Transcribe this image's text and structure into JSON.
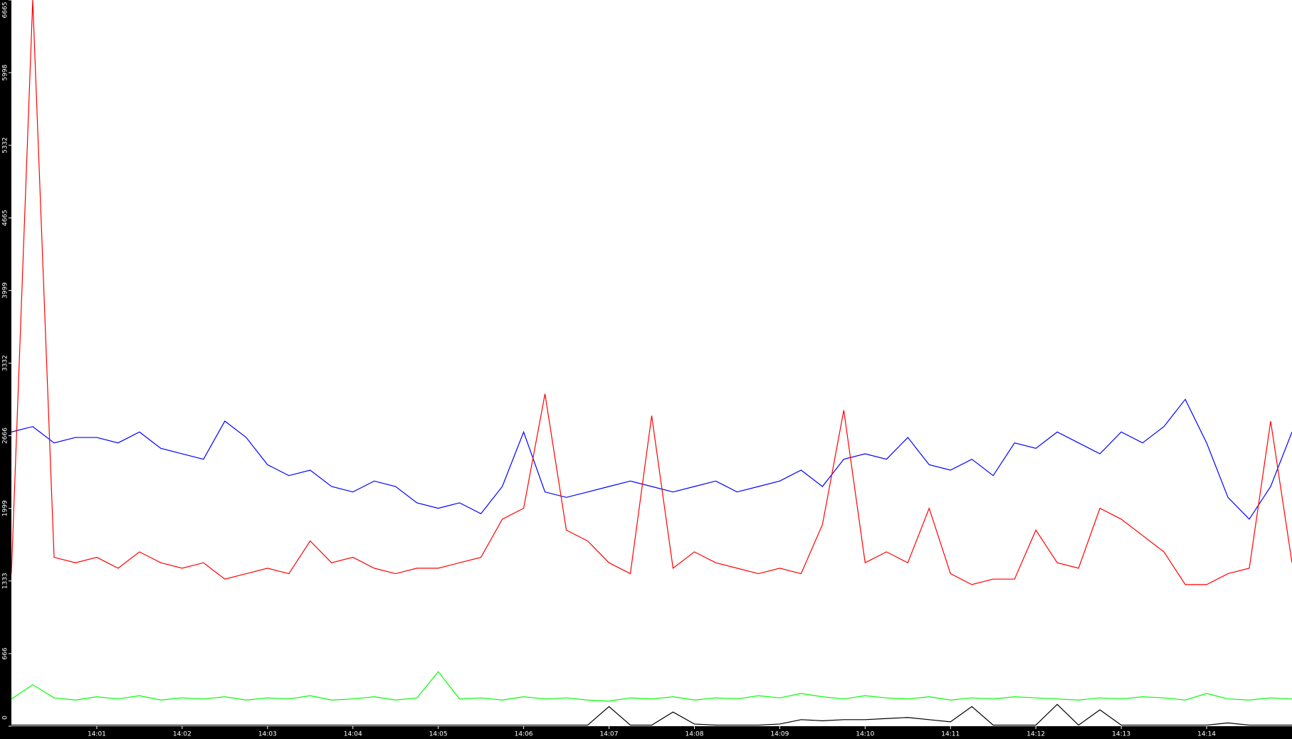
{
  "chart_data": {
    "type": "line",
    "xlim": [
      0,
      15
    ],
    "xticks": [
      {
        "value": 1,
        "label": "14:01"
      },
      {
        "value": 2,
        "label": "14:02"
      },
      {
        "value": 3,
        "label": "14:03"
      },
      {
        "value": 4,
        "label": "14:04"
      },
      {
        "value": 5,
        "label": "14:05"
      },
      {
        "value": 6,
        "label": "14:06"
      },
      {
        "value": 7,
        "label": "14:07"
      },
      {
        "value": 8,
        "label": "14:08"
      },
      {
        "value": 9,
        "label": "14:09"
      },
      {
        "value": 10,
        "label": "14:10"
      },
      {
        "value": 11,
        "label": "14:11"
      },
      {
        "value": 12,
        "label": "14:12"
      },
      {
        "value": 13,
        "label": "14:13"
      },
      {
        "value": 14,
        "label": "14:14"
      }
    ],
    "ylim": [
      0,
      6665
    ],
    "yticks": [
      0,
      666,
      1333,
      1999,
      2666,
      3332,
      3999,
      4665,
      5332,
      5998,
      6665
    ],
    "grid": false,
    "series": [
      {
        "color": "#0000ff",
        "values": [
          2700,
          2750,
          2600,
          2650,
          2650,
          2600,
          2700,
          2550,
          2500,
          2450,
          2800,
          2650,
          2400,
          2300,
          2350,
          2200,
          2150,
          2250,
          2200,
          2050,
          2000,
          2050,
          1950,
          2200,
          2700,
          2150,
          2100,
          2150,
          2200,
          2250,
          2200,
          2150,
          2200,
          2250,
          2150,
          2200,
          2250,
          2350,
          2200,
          2450,
          2500,
          2450,
          2650,
          2400,
          2350,
          2450,
          2300,
          2600,
          2550,
          2700,
          2600,
          2500,
          2700,
          2600,
          2750,
          3000,
          2600,
          2100,
          1900,
          2200,
          2700
        ]
      },
      {
        "color": "#ff0000",
        "values": [
          1400,
          6665,
          1550,
          1500,
          1550,
          1450,
          1600,
          1500,
          1450,
          1500,
          1350,
          1400,
          1450,
          1400,
          1700,
          1500,
          1550,
          1450,
          1400,
          1450,
          1450,
          1500,
          1550,
          1900,
          2000,
          3050,
          1800,
          1700,
          1500,
          1400,
          2850,
          1450,
          1600,
          1500,
          1450,
          1400,
          1450,
          1400,
          1850,
          2900,
          1500,
          1600,
          1500,
          2000,
          1400,
          1300,
          1350,
          1350,
          1800,
          1500,
          1450,
          2000,
          1900,
          1750,
          1600,
          1300,
          1300,
          1400,
          1450,
          2800,
          1500
        ]
      },
      {
        "color": "#00ff00",
        "values": [
          250,
          380,
          260,
          240,
          270,
          250,
          280,
          240,
          260,
          250,
          270,
          240,
          260,
          250,
          280,
          240,
          250,
          270,
          240,
          260,
          500,
          250,
          260,
          240,
          270,
          250,
          260,
          240,
          230,
          260,
          250,
          270,
          240,
          260,
          250,
          280,
          260,
          300,
          270,
          250,
          280,
          260,
          250,
          270,
          240,
          260,
          250,
          270,
          260,
          250,
          240,
          260,
          250,
          270,
          260,
          240,
          300,
          250,
          240,
          260,
          250
        ]
      },
      {
        "color": "#000000",
        "values": [
          10,
          10,
          10,
          10,
          10,
          10,
          10,
          10,
          10,
          10,
          10,
          10,
          10,
          10,
          10,
          10,
          10,
          10,
          10,
          10,
          10,
          10,
          10,
          10,
          10,
          10,
          10,
          10,
          180,
          10,
          10,
          130,
          20,
          10,
          10,
          10,
          20,
          60,
          50,
          60,
          60,
          70,
          80,
          60,
          40,
          180,
          10,
          10,
          10,
          200,
          10,
          150,
          10,
          10,
          10,
          10,
          10,
          30,
          10,
          10,
          10
        ]
      }
    ]
  }
}
